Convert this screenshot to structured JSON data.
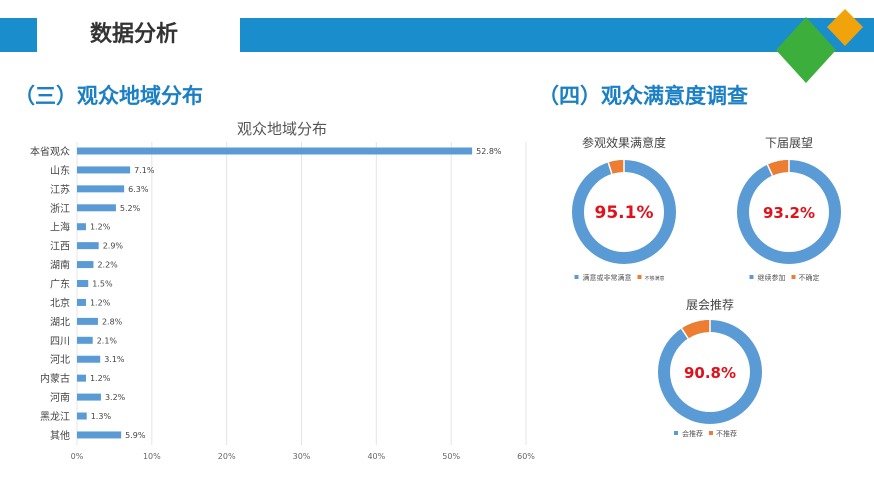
{
  "header": {
    "title": "数据分析"
  },
  "colors": {
    "band": "#1a8dcc",
    "bar": "#5b9bd5",
    "orange": "#ed7d31",
    "red": "#e0111b",
    "green": "#3cae3c",
    "gold": "#f0a30a"
  },
  "sections": {
    "left": "（三）观众地域分布",
    "right": "（四）观众满意度调查"
  },
  "chart_data": [
    {
      "type": "bar",
      "orientation": "horizontal",
      "title": "观众地域分布",
      "categories": [
        "本省观众",
        "山东",
        "江苏",
        "浙江",
        "上海",
        "江西",
        "湖南",
        "广东",
        "北京",
        "湖北",
        "四川",
        "河北",
        "内蒙古",
        "河南",
        "黑龙江",
        "其他"
      ],
      "values": [
        52.8,
        7.1,
        6.3,
        5.2,
        1.2,
        2.9,
        2.2,
        1.5,
        1.2,
        2.8,
        2.1,
        3.1,
        1.2,
        3.2,
        1.3,
        5.9
      ],
      "labels": [
        "52.8%",
        "7.1%",
        "6.3%",
        "5.2%",
        "1.2%",
        "2.9%",
        "2.2%",
        "1.5%",
        "1.2%",
        "2.8%",
        "2.1%",
        "3.1%",
        "1.2%",
        "3.2%",
        "1.3%",
        "5.9%"
      ],
      "xlim": [
        0,
        60
      ],
      "ticks": [
        "0%",
        "10%",
        "20%",
        "30%",
        "40%",
        "50%",
        "60%"
      ],
      "grid": true
    },
    {
      "type": "pie",
      "donut": true,
      "title": "参观效果满意度",
      "center_label": "95.1%",
      "series": [
        {
          "name": "满意或非常满意",
          "value": 95.1
        },
        {
          "name": "不够满意",
          "value": 4.9
        }
      ]
    },
    {
      "type": "pie",
      "donut": true,
      "title": "下届展望",
      "center_label": "93.2%",
      "series": [
        {
          "name": "继续参加",
          "value": 93.2
        },
        {
          "name": "不确定",
          "value": 6.8
        }
      ]
    },
    {
      "type": "pie",
      "donut": true,
      "title": "展会推荐",
      "center_label": "90.8%",
      "series": [
        {
          "name": "会推荐",
          "value": 90.8
        },
        {
          "name": "不推荐",
          "value": 9.2
        }
      ]
    }
  ]
}
